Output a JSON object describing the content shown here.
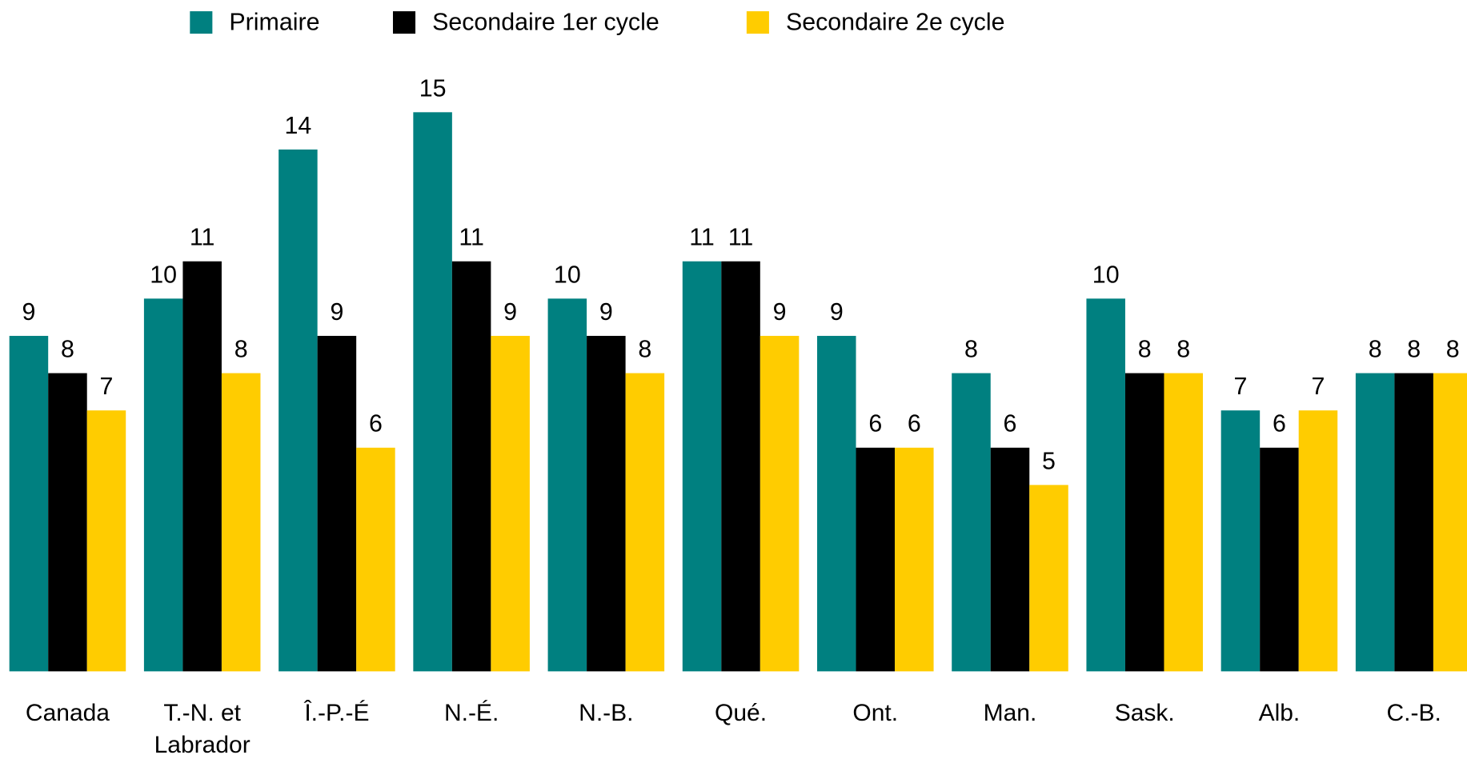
{
  "chart_data": {
    "type": "bar",
    "categories": [
      "Canada",
      "T.-N. et Labrador",
      "Î.-P.-É",
      "N.-É.",
      "N.-B.",
      "Qué.",
      "Ont.",
      "Man.",
      "Sask.",
      "Alb.",
      "C.-B."
    ],
    "series": [
      {
        "name": "Primaire",
        "color": "#008080",
        "values": [
          9,
          10,
          14,
          15,
          10,
          11,
          9,
          8,
          10,
          7,
          8
        ]
      },
      {
        "name": "Secondaire 1er cycle",
        "color": "#000000",
        "values": [
          8,
          11,
          9,
          11,
          9,
          11,
          6,
          6,
          8,
          6,
          8
        ]
      },
      {
        "name": "Secondaire 2e cycle",
        "color": "#ffcc00",
        "values": [
          7,
          8,
          6,
          9,
          8,
          9,
          6,
          5,
          8,
          7,
          8
        ]
      }
    ],
    "ylim": [
      0,
      15
    ],
    "legend": "top"
  }
}
